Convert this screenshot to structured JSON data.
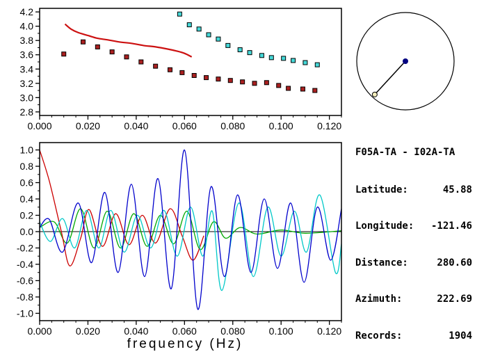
{
  "station_info": {
    "title": "F05A-TA - I02A-TA",
    "rows": [
      {
        "label": "Latitude:",
        "value": "45.88"
      },
      {
        "label": "Longitude:",
        "value": "-121.46"
      },
      {
        "label": "Distance:",
        "value": "280.60"
      },
      {
        "label": "Azimuth:",
        "value": "222.69"
      },
      {
        "label": "Records:",
        "value": "1904"
      }
    ]
  },
  "azimuth_diagram": {
    "azimuth_deg": 222.69,
    "circle_color": "#000000",
    "line_color": "#000000",
    "center_dot_color": "#000080",
    "end_dot_color": "#f5eebc"
  },
  "chart_data": [
    {
      "name": "dispersion_panel",
      "type": "line+scatter",
      "title": "",
      "xlabel": "",
      "ylabel": "",
      "xlim": [
        0,
        0.125
      ],
      "ylim": [
        2.75,
        4.25
      ],
      "xticks": [
        0,
        0.02,
        0.04,
        0.06,
        0.08,
        0.1,
        0.12
      ],
      "xtick_labels": [
        "0.000",
        "0.020",
        "0.040",
        "0.060",
        "0.080",
        "0.100",
        "0.120"
      ],
      "yticks": [
        2.8,
        3.0,
        3.2,
        3.4,
        3.6,
        3.8,
        4.0,
        4.2
      ],
      "ytick_labels": [
        "2.8",
        "3.0",
        "3.2",
        "3.4",
        "3.6",
        "3.8",
        "4.0",
        "4.2"
      ],
      "x_minor": 0.005,
      "y_minor": 0.1,
      "grid": false,
      "series": [
        {
          "name": "red-dispersion-curve",
          "kind": "line",
          "color": "#cc1111",
          "width": 2.2,
          "points": [
            [
              0.0105,
              4.03
            ],
            [
              0.013,
              3.96
            ],
            [
              0.016,
              3.91
            ],
            [
              0.02,
              3.87
            ],
            [
              0.024,
              3.83
            ],
            [
              0.028,
              3.81
            ],
            [
              0.033,
              3.78
            ],
            [
              0.038,
              3.76
            ],
            [
              0.043,
              3.73
            ],
            [
              0.048,
              3.71
            ],
            [
              0.053,
              3.68
            ],
            [
              0.057,
              3.65
            ],
            [
              0.06,
              3.62
            ],
            [
              0.063,
              3.57
            ]
          ]
        },
        {
          "name": "dark-red-square-picks",
          "kind": "scatter",
          "marker": "square",
          "color": "#aa2020",
          "points": [
            [
              0.01,
              3.61
            ],
            [
              0.018,
              3.78
            ],
            [
              0.024,
              3.71
            ],
            [
              0.03,
              3.64
            ],
            [
              0.036,
              3.57
            ],
            [
              0.042,
              3.5
            ],
            [
              0.048,
              3.44
            ],
            [
              0.054,
              3.39
            ],
            [
              0.059,
              3.35
            ],
            [
              0.064,
              3.31
            ],
            [
              0.069,
              3.28
            ],
            [
              0.074,
              3.26
            ],
            [
              0.079,
              3.24
            ],
            [
              0.084,
              3.22
            ],
            [
              0.089,
              3.2
            ],
            [
              0.094,
              3.21
            ],
            [
              0.099,
              3.17
            ],
            [
              0.103,
              3.13
            ],
            [
              0.109,
              3.12
            ],
            [
              0.114,
              3.1
            ]
          ]
        },
        {
          "name": "cyan-square-picks",
          "kind": "scatter",
          "marker": "square",
          "color": "#45d8d8",
          "points": [
            [
              0.058,
              4.17
            ],
            [
              0.062,
              4.02
            ],
            [
              0.066,
              3.96
            ],
            [
              0.07,
              3.88
            ],
            [
              0.074,
              3.82
            ],
            [
              0.078,
              3.73
            ],
            [
              0.083,
              3.67
            ],
            [
              0.087,
              3.63
            ],
            [
              0.092,
              3.59
            ],
            [
              0.096,
              3.56
            ],
            [
              0.101,
              3.55
            ],
            [
              0.105,
              3.52
            ],
            [
              0.11,
              3.49
            ],
            [
              0.115,
              3.46
            ]
          ]
        }
      ]
    },
    {
      "name": "waveform_panel",
      "type": "line",
      "title": "",
      "xlabel": "frequency (Hz)",
      "ylabel": "",
      "xlim": [
        0,
        0.125
      ],
      "ylim": [
        -1.09,
        1.09
      ],
      "xticks": [
        0,
        0.02,
        0.04,
        0.06,
        0.08,
        0.1,
        0.12
      ],
      "xtick_labels": [
        "0.000",
        "0.020",
        "0.040",
        "0.060",
        "0.080",
        "0.100",
        "0.120"
      ],
      "yticks": [
        -1.0,
        -0.8,
        -0.6,
        -0.4,
        -0.2,
        0.0,
        0.2,
        0.4,
        0.6,
        0.8,
        1.0
      ],
      "ytick_labels": [
        "-1.0",
        "-0.8",
        "-0.6",
        "-0.4",
        "-0.2",
        "0.0",
        "0.2",
        "0.4",
        "0.6",
        "0.8",
        "1.0"
      ],
      "x_minor": 0.005,
      "y_minor": 0.1,
      "zero_line": true,
      "grid": false,
      "series": [
        {
          "name": "green-trace",
          "kind": "line",
          "color": "#00a800",
          "width": 1.3,
          "points": [
            [
              0,
              0.05
            ],
            [
              0.006,
              0.12
            ],
            [
              0.0115,
              -0.14
            ],
            [
              0.017,
              0.28
            ],
            [
              0.0225,
              -0.2
            ],
            [
              0.028,
              0.25
            ],
            [
              0.0335,
              -0.2
            ],
            [
              0.039,
              0.22
            ],
            [
              0.0445,
              -0.18
            ],
            [
              0.05,
              0.2
            ],
            [
              0.0555,
              -0.15
            ],
            [
              0.061,
              0.25
            ],
            [
              0.0665,
              -0.22
            ],
            [
              0.072,
              0.12
            ],
            [
              0.077,
              -0.08
            ],
            [
              0.083,
              0.05
            ],
            [
              0.09,
              -0.03
            ],
            [
              0.1,
              0.02
            ],
            [
              0.11,
              -0.02
            ],
            [
              0.125,
              0.01
            ]
          ]
        },
        {
          "name": "red-trace",
          "kind": "line",
          "color": "#cc0000",
          "width": 1.3,
          "points": [
            [
              0,
              1.0
            ],
            [
              0.004,
              0.62
            ],
            [
              0.009,
              0.0
            ],
            [
              0.0125,
              -0.42
            ],
            [
              0.017,
              -0.08
            ],
            [
              0.0205,
              0.27
            ],
            [
              0.026,
              -0.18
            ],
            [
              0.0315,
              0.22
            ],
            [
              0.037,
              -0.16
            ],
            [
              0.0425,
              0.2
            ],
            [
              0.048,
              -0.14
            ],
            [
              0.054,
              0.28
            ],
            [
              0.059,
              -0.05
            ],
            [
              0.0635,
              -0.35
            ],
            [
              0.068,
              -0.05
            ]
          ]
        },
        {
          "name": "cyan-trace",
          "kind": "line",
          "color": "#00c8c8",
          "width": 1.3,
          "points": [
            [
              0,
              0.12
            ],
            [
              0.0045,
              -0.12
            ],
            [
              0.0095,
              0.16
            ],
            [
              0.0145,
              -0.2
            ],
            [
              0.0195,
              0.26
            ],
            [
              0.0245,
              -0.2
            ],
            [
              0.0295,
              0.26
            ],
            [
              0.035,
              -0.25
            ],
            [
              0.0405,
              0.2
            ],
            [
              0.046,
              -0.2
            ],
            [
              0.0515,
              0.26
            ],
            [
              0.057,
              -0.3
            ],
            [
              0.0625,
              0.3
            ],
            [
              0.0675,
              -0.3
            ],
            [
              0.0715,
              0.25
            ],
            [
              0.0755,
              -0.72
            ],
            [
              0.0825,
              0.35
            ],
            [
              0.0885,
              -0.55
            ],
            [
              0.0945,
              0.3
            ],
            [
              0.1,
              -0.3
            ],
            [
              0.1055,
              0.25
            ],
            [
              0.1105,
              -0.25
            ],
            [
              0.116,
              0.45
            ],
            [
              0.1225,
              -0.5
            ],
            [
              0.125,
              -0.15
            ]
          ]
        },
        {
          "name": "blue-trace",
          "kind": "line",
          "color": "#0000cc",
          "width": 1.3,
          "points": [
            [
              0,
              0.05
            ],
            [
              0.004,
              0.15
            ],
            [
              0.0095,
              -0.25
            ],
            [
              0.016,
              0.35
            ],
            [
              0.0215,
              -0.38
            ],
            [
              0.027,
              0.48
            ],
            [
              0.0325,
              -0.5
            ],
            [
              0.038,
              0.58
            ],
            [
              0.0435,
              -0.55
            ],
            [
              0.049,
              0.65
            ],
            [
              0.0545,
              -0.7
            ],
            [
              0.06,
              1.0
            ],
            [
              0.0655,
              -0.95
            ],
            [
              0.071,
              0.55
            ],
            [
              0.0765,
              -0.55
            ],
            [
              0.082,
              0.45
            ],
            [
              0.0875,
              -0.5
            ],
            [
              0.093,
              0.4
            ],
            [
              0.0985,
              -0.45
            ],
            [
              0.104,
              0.35
            ],
            [
              0.1095,
              -0.62
            ],
            [
              0.115,
              0.3
            ],
            [
              0.1205,
              -0.35
            ],
            [
              0.125,
              0.28
            ]
          ]
        }
      ]
    }
  ]
}
